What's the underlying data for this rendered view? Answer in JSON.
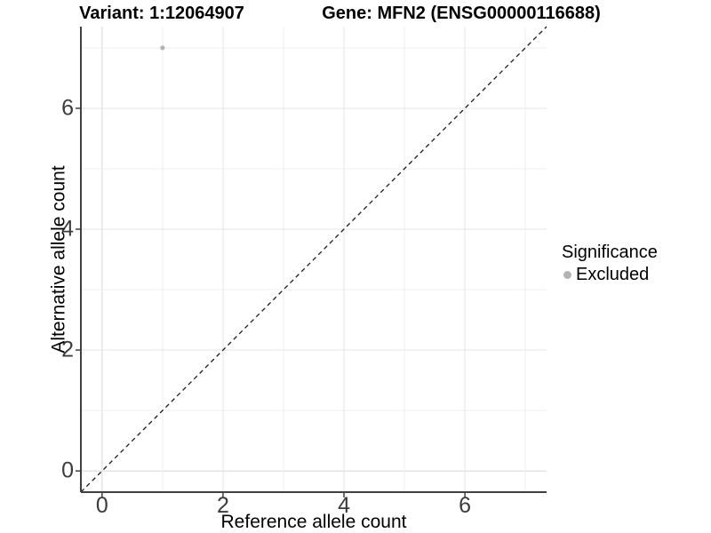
{
  "titles": {
    "variant": "Variant: 1:12064907",
    "gene": "Gene: MFN2 (ENSG00000116688)"
  },
  "axes": {
    "x": {
      "label": "Reference allele count",
      "tick_labels": [
        "0",
        "2",
        "4",
        "6"
      ]
    },
    "y": {
      "label": "Alternative allele count",
      "tick_labels": [
        "0",
        "2",
        "4",
        "6"
      ]
    }
  },
  "legend": {
    "title": "Significance",
    "items": [
      {
        "label": "Excluded",
        "color": "#b3b3b3",
        "marker": "circle"
      }
    ]
  },
  "chart_data": {
    "type": "scatter",
    "title": "Variant: 1:12064907   Gene: MFN2 (ENSG00000116688)",
    "xlabel": "Reference allele count",
    "ylabel": "Alternative allele count",
    "xlim": [
      -0.35,
      7.35
    ],
    "ylim": [
      -0.35,
      7.35
    ],
    "x_breaks": [
      0,
      2,
      4,
      6
    ],
    "y_breaks": [
      0,
      2,
      4,
      6
    ],
    "grid_lines": [
      0,
      1,
      2,
      3,
      4,
      5,
      6,
      7
    ],
    "grid": true,
    "legend_position": "right",
    "series": [
      {
        "name": "Excluded",
        "color": "#b3b3b3",
        "points": [
          {
            "x": 1,
            "y": 7
          }
        ]
      }
    ],
    "reference_line": {
      "type": "identity",
      "equation": "y = x",
      "style": "dashed",
      "color": "#1a1a1a"
    }
  },
  "colors": {
    "background": "#ffffff",
    "grid_major": "#e4e4e4",
    "grid_minor": "#efefef",
    "axis_line": "#404040",
    "tick_text": "#3c3c3c",
    "point": "#b3b3b3"
  }
}
